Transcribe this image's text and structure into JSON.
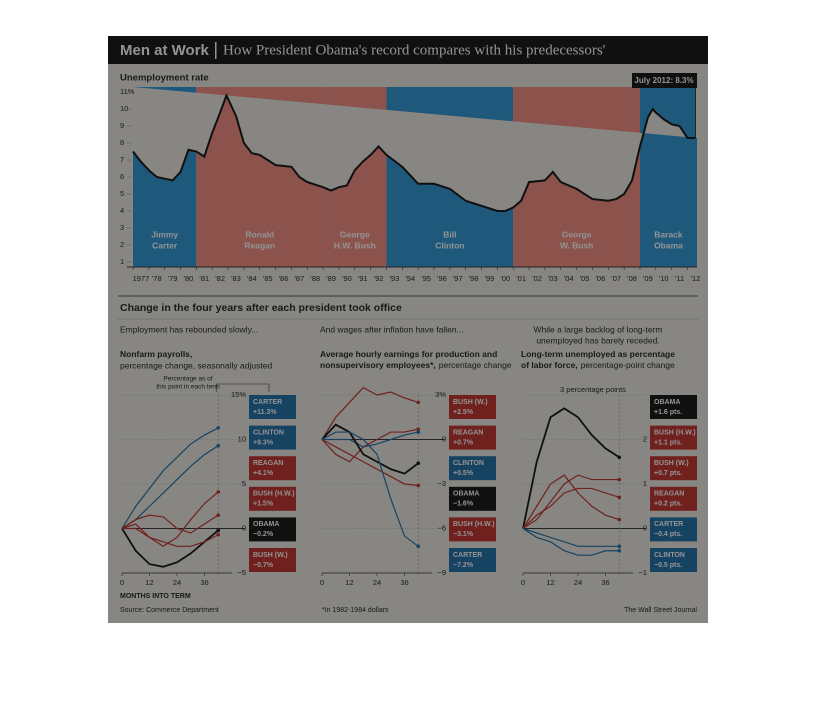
{
  "header": {
    "title": "Men at Work",
    "subtitle": "How President Obama's record compares with his predecessors'"
  },
  "section_title": "Change in the four years after each president took office",
  "source": "Source: Commerce Department",
  "footnote": "*In 1982-1984 dollars",
  "credit": "The Wall Street Journal",
  "chart_data": [
    {
      "type": "line",
      "title": "Unemployment rate",
      "annotation": "July 2012: 8.3%",
      "color": "#111111",
      "x": [
        1977,
        1977.5,
        1978,
        1978.5,
        1979,
        1979.5,
        1980,
        1980.5,
        1981,
        1981.5,
        1982,
        1982.5,
        1982.9,
        1983.5,
        1984,
        1984.5,
        1985,
        1986,
        1987,
        1987.5,
        1988,
        1989,
        1989.5,
        1990,
        1990.5,
        1991,
        1991.5,
        1992,
        1992.5,
        1993,
        1994,
        1995,
        1996,
        1997,
        1998,
        1999,
        2000,
        2000.5,
        2001,
        2001.5,
        2002,
        2003,
        2003.5,
        2004,
        2005,
        2006,
        2007,
        2007.5,
        2008,
        2008.5,
        2009,
        2009.5,
        2009.8,
        2010,
        2010.5,
        2011,
        2011.5,
        2012,
        2012.5
      ],
      "values": [
        7.5,
        6.9,
        6.4,
        6.0,
        5.9,
        5.8,
        6.3,
        7.6,
        7.5,
        7.2,
        8.6,
        9.8,
        10.8,
        9.6,
        8.0,
        7.4,
        7.3,
        6.7,
        6.6,
        6.0,
        5.7,
        5.4,
        5.2,
        5.4,
        5.5,
        6.4,
        6.9,
        7.3,
        7.8,
        7.3,
        6.6,
        5.6,
        5.6,
        5.3,
        4.6,
        4.3,
        4.0,
        4.0,
        4.2,
        4.6,
        5.7,
        5.8,
        6.3,
        5.7,
        5.3,
        4.7,
        4.6,
        4.7,
        5.0,
        5.8,
        7.8,
        9.5,
        10.0,
        9.8,
        9.4,
        9.1,
        9.0,
        8.3,
        8.3
      ],
      "xlim": [
        1977,
        2012.6
      ],
      "ylim": [
        0.7,
        11.3
      ],
      "yticks": [
        1,
        2,
        3,
        4,
        5,
        6,
        7,
        8,
        9,
        10,
        {
          "value": 11,
          "label": "11%"
        }
      ],
      "xticks": [
        1977,
        {
          "value": 1978,
          "label": "'78"
        },
        {
          "value": 1979,
          "label": "'79"
        },
        {
          "value": 1980,
          "label": "'80"
        },
        {
          "value": 1981,
          "label": "'81"
        },
        {
          "value": 1982,
          "label": "'82"
        },
        {
          "value": 1983,
          "label": "'83"
        },
        {
          "value": 1984,
          "label": "'84"
        },
        {
          "value": 1985,
          "label": "'85"
        },
        {
          "value": 1986,
          "label": "'86"
        },
        {
          "value": 1987,
          "label": "'87"
        },
        {
          "value": 1988,
          "label": "'88"
        },
        {
          "value": 1989,
          "label": "'89"
        },
        {
          "value": 1990,
          "label": "'90"
        },
        {
          "value": 1991,
          "label": "'91"
        },
        {
          "value": 1992,
          "label": "'92"
        },
        {
          "value": 1993,
          "label": "'93"
        },
        {
          "value": 1994,
          "label": "'94"
        },
        {
          "value": 1995,
          "label": "'95"
        },
        {
          "value": 1996,
          "label": "'96"
        },
        {
          "value": 1997,
          "label": "'97"
        },
        {
          "value": 1998,
          "label": "'98"
        },
        {
          "value": 1999,
          "label": "'99"
        },
        {
          "value": 2000,
          "label": "'00"
        },
        {
          "value": 2001,
          "label": "'01"
        },
        {
          "value": 2002,
          "label": "'02"
        },
        {
          "value": 2003,
          "label": "'03"
        },
        {
          "value": 2004,
          "label": "'04"
        },
        {
          "value": 2005,
          "label": "'05"
        },
        {
          "value": 2006,
          "label": "'06"
        },
        {
          "value": 2007,
          "label": "'07"
        },
        {
          "value": 2008,
          "label": "'08"
        },
        {
          "value": 2009,
          "label": "'09"
        },
        {
          "value": 2010,
          "label": "'10"
        },
        {
          "value": 2011,
          "label": "'11"
        },
        {
          "value": 2012,
          "label": "'12"
        }
      ],
      "terms": [
        {
          "label": [
            "Jimmy",
            "Carter"
          ],
          "start": 1977,
          "end": 1981,
          "color": "#2a96d6"
        },
        {
          "label": [
            "Ronald",
            "Reagan"
          ],
          "start": 1981,
          "end": 1989,
          "color": "#f38a80"
        },
        {
          "label": [
            "George",
            "H.W. Bush"
          ],
          "start": 1989,
          "end": 1993,
          "color": "#f38a80"
        },
        {
          "label": [
            "Bill",
            "Clinton"
          ],
          "start": 1993,
          "end": 2001,
          "color": "#2a96d6"
        },
        {
          "label": [
            "George",
            "W. Bush"
          ],
          "start": 2001,
          "end": 2009,
          "color": "#f38a80"
        },
        {
          "label": [
            "Barack",
            "Obama"
          ],
          "start": 2009,
          "end": 2012.6,
          "color": "#2a96d6"
        }
      ]
    },
    {
      "type": "line",
      "intro": [
        "Employment has rebounded slowly..."
      ],
      "title": [
        "Nonfarm payrolls,"
      ],
      "subtitle": "percentage change, seasonally adjusted",
      "subtitle_inline": false,
      "annotation": [
        "Percentage as of",
        "this point in each term"
      ],
      "xlabel": "MONTHS INTO TERM",
      "x": [
        0,
        6,
        12,
        18,
        24,
        30,
        36,
        42
      ],
      "xlim": [
        0,
        48
      ],
      "xticks": [
        0,
        12,
        24,
        36
      ],
      "ylim": [
        -5,
        15
      ],
      "yticks": [
        {
          "value": 15,
          "label": "15%"
        },
        10,
        5,
        0,
        {
          "value": -5,
          "label": "−5"
        }
      ],
      "series": [
        {
          "name": "CARTER",
          "color": "#1d6ea6",
          "values": [
            0,
            2.5,
            4.5,
            6.5,
            8,
            9.5,
            10.5,
            11.3
          ],
          "value_label": "+11.3%"
        },
        {
          "name": "CLINTON",
          "color": "#1d6ea6",
          "values": [
            0,
            1,
            2.5,
            4,
            5.5,
            7,
            8.3,
            9.3
          ],
          "value_label": "+9.3%"
        },
        {
          "name": "REAGAN",
          "color": "#c0312a",
          "values": [
            0,
            0.5,
            -1,
            -2,
            -1,
            1,
            2.8,
            4.1
          ],
          "value_label": "+4.1%"
        },
        {
          "name": "BUSH (H.W.)",
          "color": "#c0312a",
          "values": [
            0,
            1,
            1.5,
            1.3,
            0,
            -0.5,
            0.5,
            1.5
          ],
          "value_label": "+1.5%"
        },
        {
          "name": "OBAMA",
          "color": "#111111",
          "values": [
            0,
            -2.5,
            -4,
            -4.3,
            -3.8,
            -2.8,
            -1.5,
            -0.2
          ],
          "value_label": "−0.2%"
        },
        {
          "name": "BUSH (W.)",
          "color": "#c0312a",
          "values": [
            0,
            0,
            -1,
            -1.5,
            -2,
            -2,
            -1.5,
            -0.7
          ],
          "value_label": "−0.7%"
        }
      ]
    },
    {
      "type": "line",
      "intro": [
        "And wages after inflation have fallen..."
      ],
      "title": [
        "Average hourly earnings for production and",
        "nonsupervisory employees*,"
      ],
      "subtitle": "percentage change",
      "subtitle_inline": true,
      "x": [
        0,
        6,
        12,
        18,
        24,
        30,
        36,
        42
      ],
      "xlim": [
        0,
        48
      ],
      "xticks": [
        0,
        12,
        24,
        36
      ],
      "ylim": [
        -9,
        3
      ],
      "yticks": [
        {
          "value": 3,
          "label": "3%"
        },
        0,
        {
          "value": -3,
          "label": "−3"
        },
        {
          "value": -6,
          "label": "−6"
        },
        {
          "value": -9,
          "label": "−9"
        }
      ],
      "series": [
        {
          "name": "BUSH (W.)",
          "color": "#c0312a",
          "values": [
            0,
            1.5,
            2.5,
            3.5,
            3,
            3.2,
            2.8,
            2.5
          ],
          "value_label": "+2.5%"
        },
        {
          "name": "REAGAN",
          "color": "#c0312a",
          "values": [
            0,
            -1,
            -1.5,
            -0.5,
            0,
            0.5,
            0.5,
            0.7
          ],
          "value_label": "+0.7%"
        },
        {
          "name": "CLINTON",
          "color": "#1d6ea6",
          "values": [
            0,
            0,
            0,
            -0.5,
            -0.3,
            0,
            0.3,
            0.5
          ],
          "value_label": "+0.5%"
        },
        {
          "name": "OBAMA",
          "color": "#111111",
          "values": [
            0,
            1,
            0.5,
            -1,
            -1.5,
            -2,
            -2.3,
            -1.6
          ],
          "value_label": "−1.6%"
        },
        {
          "name": "BUSH (H.W.)",
          "color": "#c0312a",
          "values": [
            0,
            -0.5,
            -1,
            -1.5,
            -2,
            -2.5,
            -3,
            -3.1
          ],
          "value_label": "−3.1%"
        },
        {
          "name": "CARTER",
          "color": "#1d6ea6",
          "values": [
            0,
            0.5,
            0.5,
            0,
            -1,
            -4,
            -6.5,
            -7.2
          ],
          "value_label": "−7.2%"
        }
      ]
    },
    {
      "type": "line",
      "intro": [
        "While a large backlog of long-term",
        "unemployed has barely receded."
      ],
      "title": [
        "Long-term unemployed as percentage",
        "of labor force,"
      ],
      "subtitle": "percentage-point change",
      "subtitle_inline": true,
      "x": [
        0,
        6,
        12,
        18,
        24,
        30,
        36,
        42
      ],
      "xlim": [
        0,
        48
      ],
      "xticks": [
        0,
        12,
        24,
        36
      ],
      "ylim": [
        -1,
        3
      ],
      "yticks": [
        {
          "value": 3,
          "label": "3 percentage points"
        },
        2,
        1,
        0,
        {
          "value": -1,
          "label": "−1"
        }
      ],
      "series": [
        {
          "name": "OBAMA",
          "color": "#111111",
          "values": [
            0,
            1.5,
            2.5,
            2.7,
            2.5,
            2.1,
            1.8,
            1.6
          ],
          "value_label": "+1.6 pts."
        },
        {
          "name": "BUSH (H.W.)",
          "color": "#c0312a",
          "values": [
            0,
            0.2,
            0.6,
            1,
            1.2,
            1.1,
            1.1,
            1.1
          ],
          "value_label": "+1.1 pts."
        },
        {
          "name": "BUSH (W.)",
          "color": "#c0312a",
          "values": [
            0,
            0.3,
            0.5,
            0.8,
            0.9,
            0.9,
            0.8,
            0.7
          ],
          "value_label": "+0.7 pts."
        },
        {
          "name": "REAGAN",
          "color": "#c0312a",
          "values": [
            0,
            0.5,
            1,
            1.2,
            0.8,
            0.5,
            0.3,
            0.2
          ],
          "value_label": "+0.2 pts."
        },
        {
          "name": "CARTER",
          "color": "#1d6ea6",
          "values": [
            0,
            -0.1,
            -0.2,
            -0.3,
            -0.4,
            -0.4,
            -0.4,
            -0.4
          ],
          "value_label": "−0.4 pts."
        },
        {
          "name": "CLINTON",
          "color": "#1d6ea6",
          "values": [
            0,
            -0.2,
            -0.3,
            -0.5,
            -0.6,
            -0.6,
            -0.5,
            -0.5
          ],
          "value_label": "−0.5 pts."
        }
      ]
    }
  ]
}
